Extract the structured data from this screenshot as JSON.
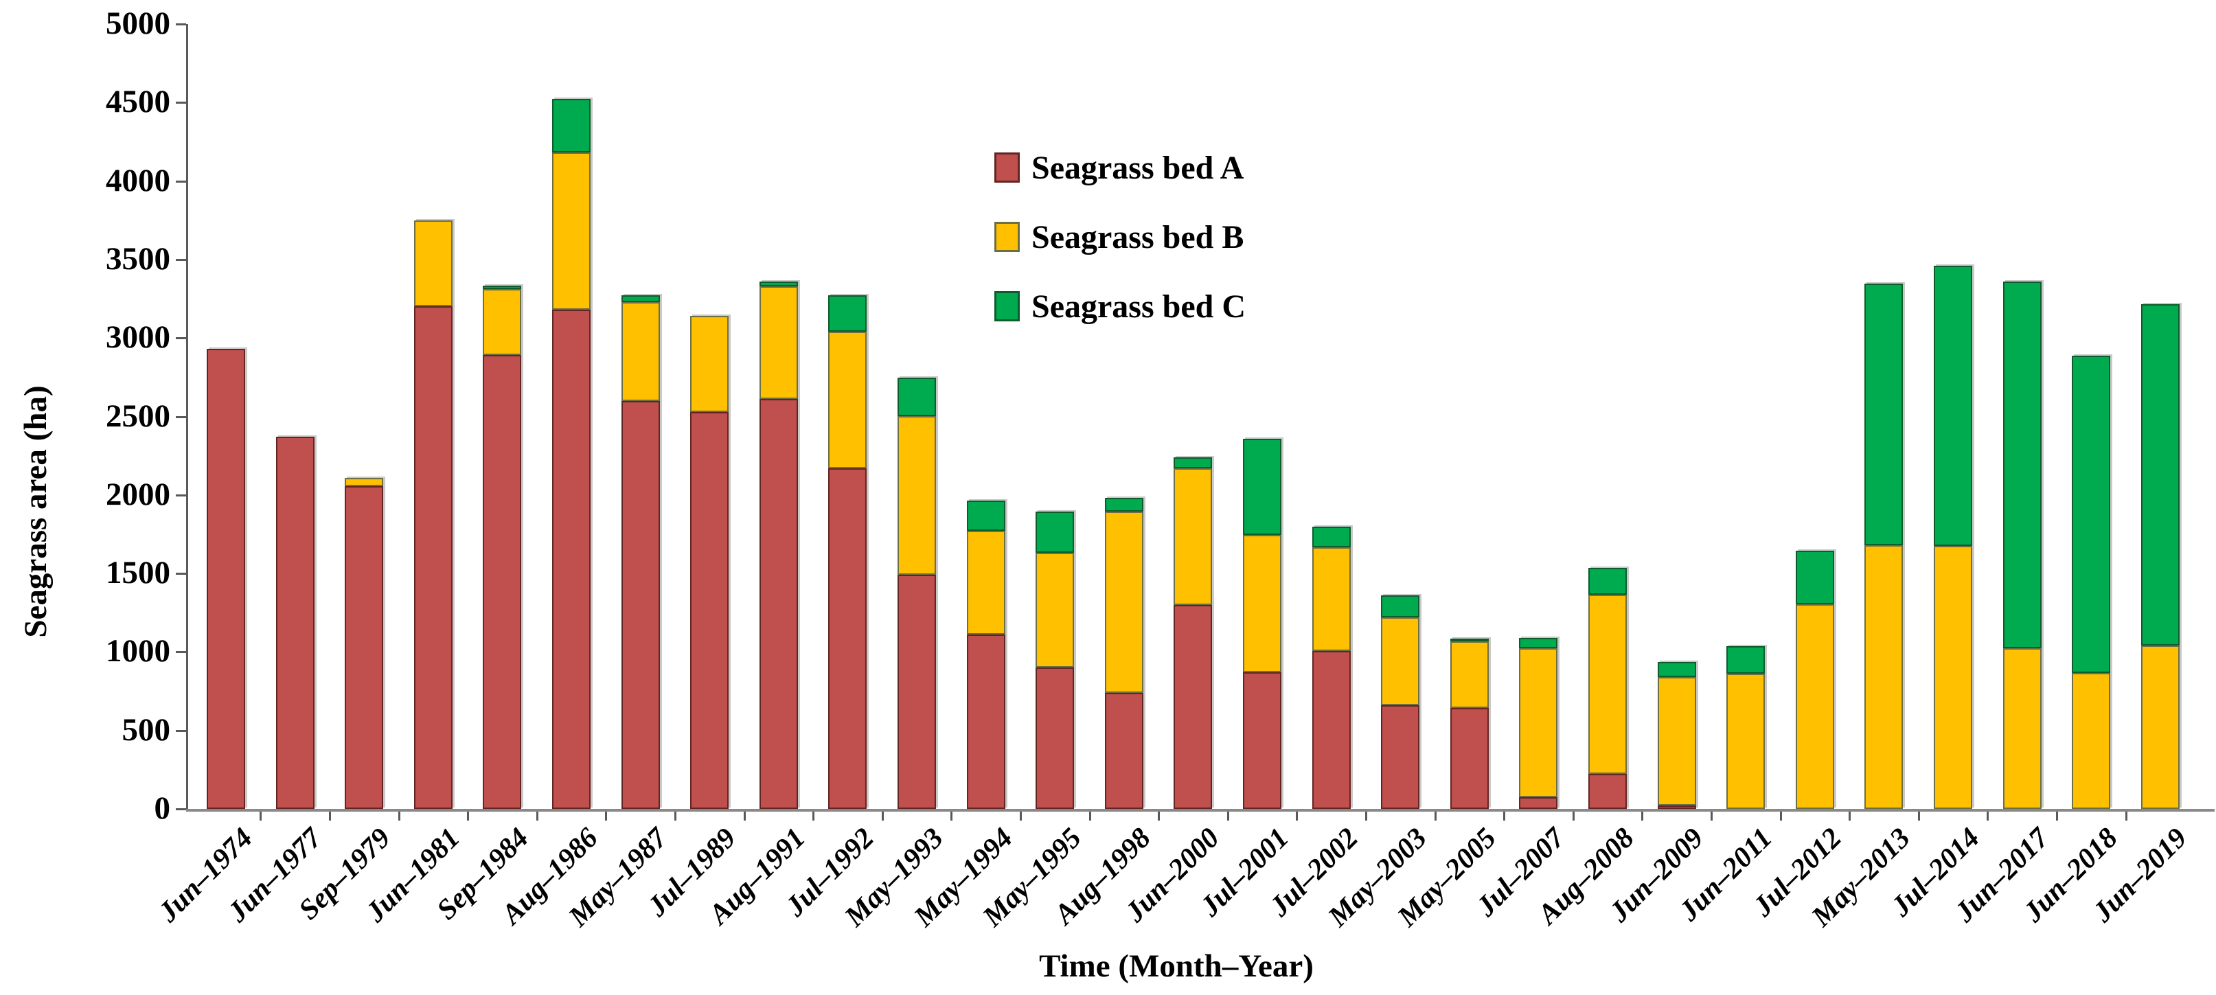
{
  "chart_data": {
    "type": "bar",
    "stacked": true,
    "title": "",
    "xlabel": "Time (Month–Year)",
    "ylabel": "Seagrass area (ha)",
    "ylim": [
      0,
      5000
    ],
    "ytick_step": 500,
    "yticks": [
      0,
      500,
      1000,
      1500,
      2000,
      2500,
      3000,
      3500,
      4000,
      4500,
      5000
    ],
    "grid": false,
    "legend_position": "upper-center-inside",
    "categories": [
      "Jun–1974",
      "Jun–1977",
      "Sep–1979",
      "Jun–1981",
      "Sep–1984",
      "Aug–1986",
      "May–1987",
      "Jul–1989",
      "Aug–1991",
      "Jul–1992",
      "May–1993",
      "May–1994",
      "May–1995",
      "Aug–1998",
      "Jun–2000",
      "Jul–2001",
      "Jul–2002",
      "May–2003",
      "May–2005",
      "Jul–2007",
      "Aug–2008",
      "Jun–2009",
      "Jun–2011",
      "Jul–2012",
      "May–2013",
      "Jul–2014",
      "Jun–2017",
      "Jun–2018",
      "Jun–2019"
    ],
    "series": [
      {
        "name": "Seagrass bed A",
        "color": "#c0504d",
        "border_color": "#632523",
        "values": [
          2930,
          2370,
          2055,
          3200,
          2890,
          3180,
          2600,
          2530,
          2610,
          2170,
          1490,
          1110,
          900,
          740,
          1300,
          870,
          1005,
          660,
          645,
          75,
          225,
          20,
          0,
          0,
          0,
          0,
          0,
          0,
          0
        ]
      },
      {
        "name": "Seagrass bed B",
        "color": "#ffc000",
        "border_color": "#6e6e44",
        "values": [
          0,
          0,
          55,
          550,
          420,
          1000,
          630,
          610,
          720,
          870,
          1010,
          660,
          730,
          1155,
          870,
          875,
          660,
          560,
          425,
          950,
          1140,
          820,
          860,
          1305,
          1680,
          1675,
          1025,
          865,
          1040
        ]
      },
      {
        "name": "Seagrass bed C",
        "color": "#00ab50",
        "border_color": "#0d5c2c",
        "values": [
          0,
          0,
          0,
          0,
          25,
          345,
          40,
          0,
          30,
          230,
          245,
          195,
          265,
          85,
          70,
          615,
          135,
          140,
          15,
          65,
          170,
          95,
          175,
          340,
          1665,
          1785,
          2335,
          2020,
          2175
        ]
      }
    ]
  }
}
